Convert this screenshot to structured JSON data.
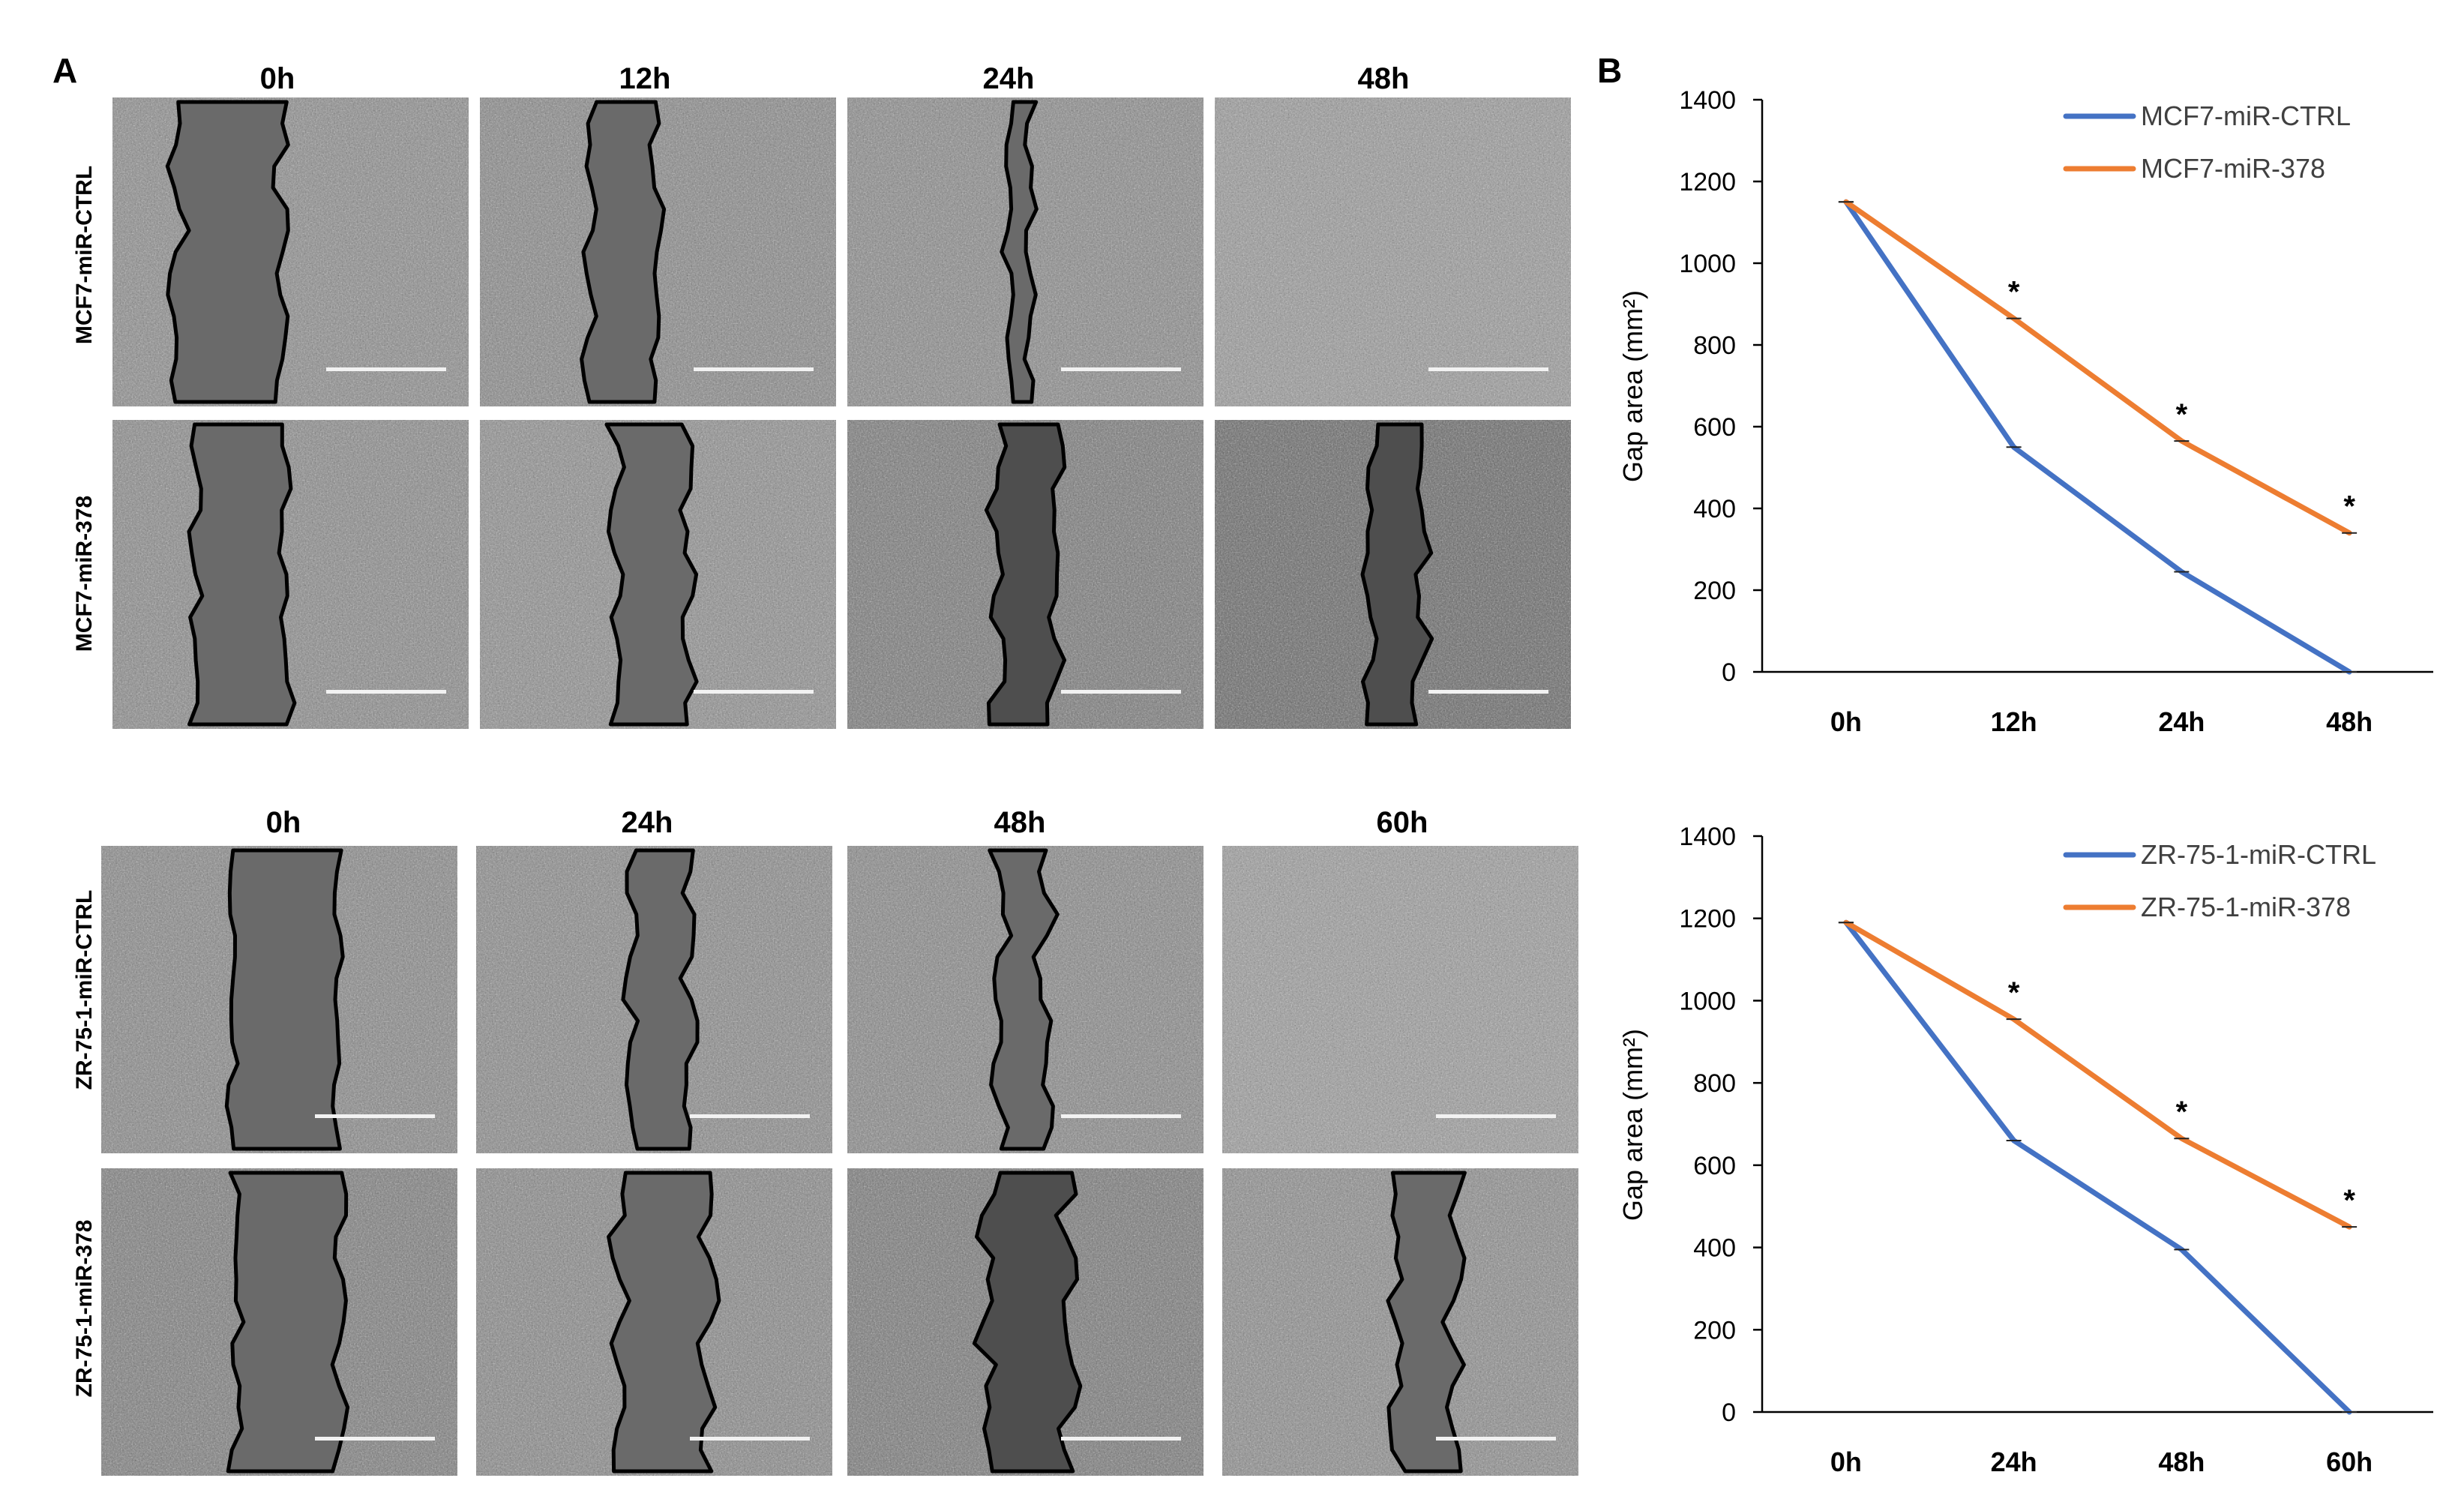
{
  "panel_a": {
    "letter": "A",
    "top_block": {
      "time_labels": [
        "0h",
        "12h",
        "24h",
        "48h"
      ],
      "row_labels": [
        "MCF7-miR-CTRL",
        "MCF7-miR-378"
      ]
    },
    "bottom_block": {
      "time_labels": [
        "0h",
        "24h",
        "48h",
        "60h"
      ],
      "row_labels": [
        "ZR-75-1-miR-CTRL",
        "ZR-75-1-miR-378"
      ]
    }
  },
  "panel_b": {
    "letter": "B"
  },
  "chart_data": [
    {
      "type": "line",
      "title": "",
      "xlabel": "",
      "ylabel": "Gap area (mm²)",
      "categories": [
        "0h",
        "12h",
        "24h",
        "48h"
      ],
      "ylim": [
        0,
        1400
      ],
      "yticks": [
        0,
        200,
        400,
        600,
        800,
        1000,
        1200,
        1400
      ],
      "series": [
        {
          "name": "MCF7-miR-CTRL",
          "color": "#4472c4",
          "values": [
            1150,
            550,
            245,
            0
          ]
        },
        {
          "name": "MCF7-miR-378",
          "color": "#ed7d31",
          "values": [
            1150,
            865,
            565,
            340
          ]
        }
      ],
      "annotations": [
        {
          "category": "12h",
          "text": "*"
        },
        {
          "category": "24h",
          "text": "*"
        },
        {
          "category": "48h",
          "text": "*"
        }
      ],
      "legend": "top-right"
    },
    {
      "type": "line",
      "title": "",
      "xlabel": "",
      "ylabel": "Gap area (mm²)",
      "categories": [
        "0h",
        "24h",
        "48h",
        "60h"
      ],
      "ylim": [
        0,
        1400
      ],
      "yticks": [
        0,
        200,
        400,
        600,
        800,
        1000,
        1200,
        1400
      ],
      "series": [
        {
          "name": "ZR-75-1-miR-CTRL",
          "color": "#4472c4",
          "values": [
            1190,
            660,
            395,
            0
          ]
        },
        {
          "name": "ZR-75-1-miR-378",
          "color": "#ed7d31",
          "values": [
            1190,
            955,
            665,
            450
          ]
        }
      ],
      "annotations": [
        {
          "category": "24h",
          "text": "*"
        },
        {
          "category": "48h",
          "text": "*"
        },
        {
          "category": "60h",
          "text": "*"
        }
      ],
      "legend": "top-right"
    }
  ]
}
